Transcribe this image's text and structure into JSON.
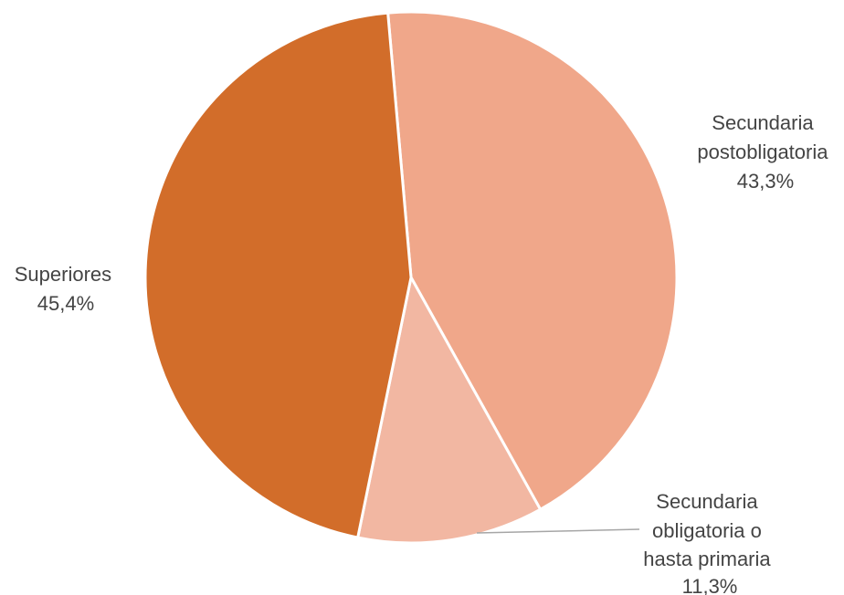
{
  "chart_data": {
    "type": "pie",
    "slices": [
      {
        "label_lines": [
          "Secundaria",
          "postobligatoria"
        ],
        "value": 43.3,
        "value_label": "43,3%",
        "color": "#F0A78A"
      },
      {
        "label_lines": [
          "Secundaria",
          "obligatoria o",
          "hasta primaria"
        ],
        "value": 11.3,
        "value_label": "11,3%",
        "color": "#F2B7A2"
      },
      {
        "label_lines": [
          "Superiores"
        ],
        "value": 45.4,
        "value_label": "45,4%",
        "color": "#D26D2A"
      }
    ],
    "start_angle_deg": -5,
    "direction": "clockwise",
    "slice_border_color": "#ffffff"
  }
}
